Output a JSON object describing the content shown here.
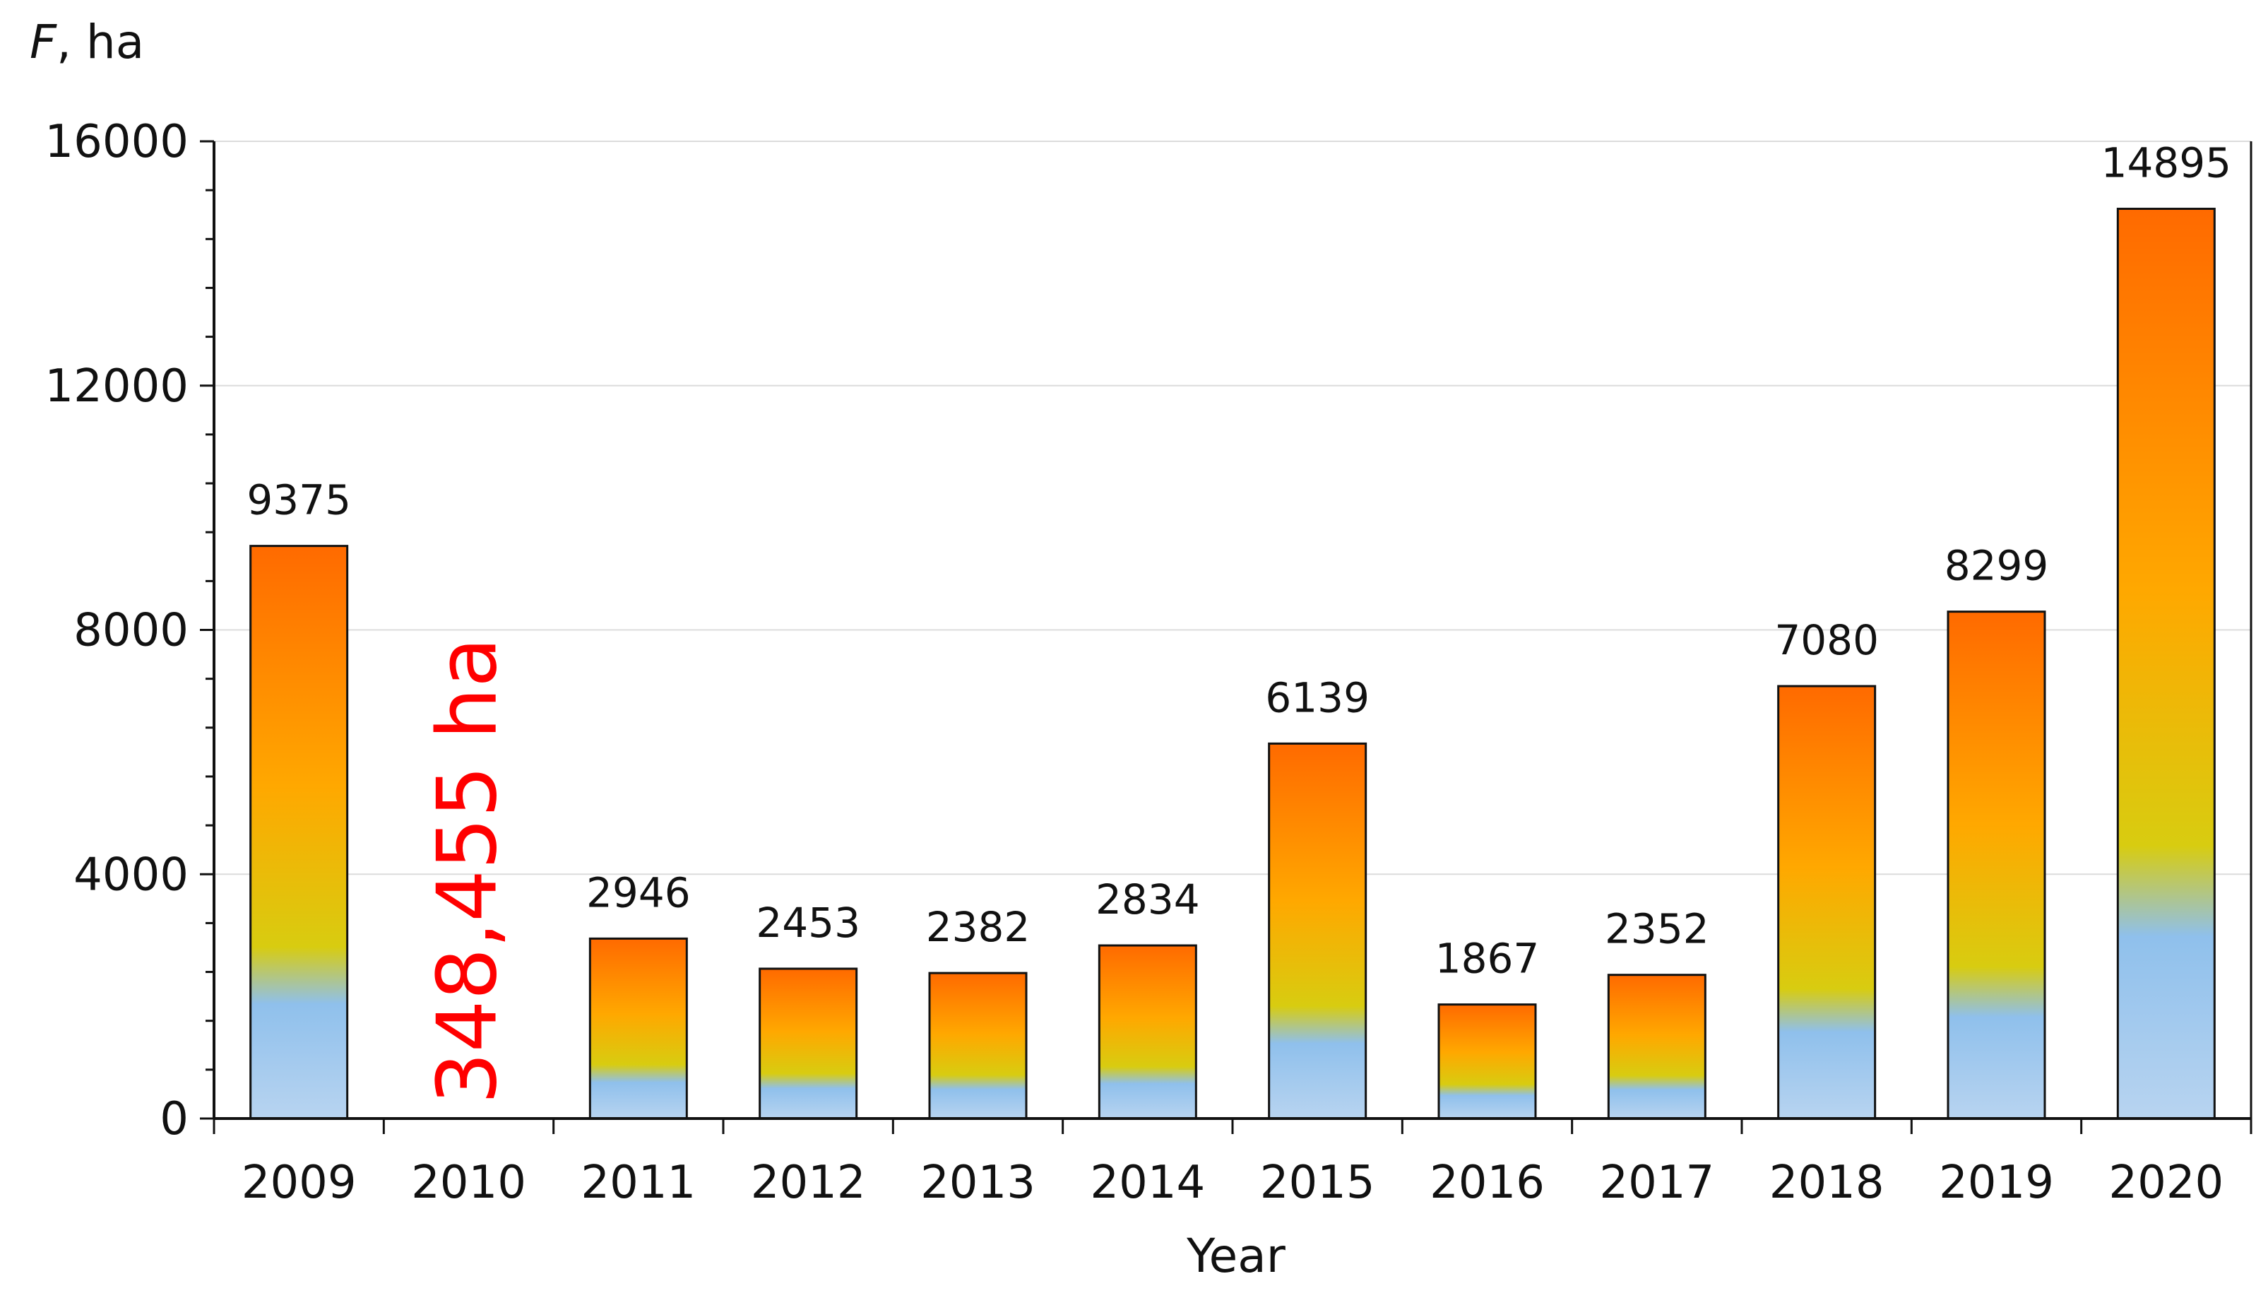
{
  "chart_data": {
    "type": "bar",
    "categories": [
      "2009",
      "2010",
      "2011",
      "2012",
      "2013",
      "2014",
      "2015",
      "2016",
      "2017",
      "2018",
      "2019",
      "2020"
    ],
    "values": [
      9375,
      null,
      2946,
      2453,
      2382,
      2834,
      6139,
      1867,
      2352,
      7080,
      8299,
      14895
    ],
    "data_labels": [
      "9375",
      "",
      "2946",
      "2453",
      "2382",
      "2834",
      "6139",
      "1867",
      "2352",
      "7080",
      "8299",
      "14895"
    ],
    "ylim": [
      0,
      16000
    ],
    "yticks": [
      "0",
      "4000",
      "8000",
      "12000",
      "16000"
    ],
    "ylabel_italic": "F",
    "ylabel_rest": ", ha",
    "xlabel": "Year",
    "grid": true,
    "annotation": {
      "category": "2010",
      "text": "348,455 ha",
      "color": "#ff0000",
      "orientation": "vertical"
    },
    "bar_gradient": [
      "#b8d4f0",
      "#8fc0ec",
      "#d8cc10",
      "#ffa800",
      "#ff6a00"
    ]
  }
}
